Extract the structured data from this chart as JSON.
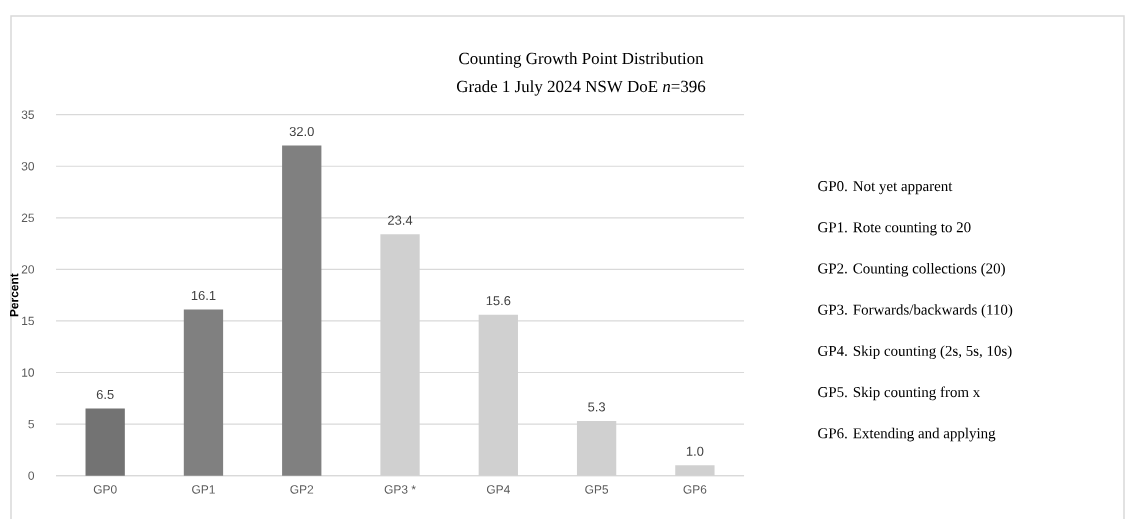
{
  "chart_data": {
    "type": "bar",
    "title": "Counting Growth Point Distribution",
    "subtitle": "Grade 1 July 2024 NSW DoE *n*=396",
    "ylabel": "Percent",
    "categories": [
      "GP0",
      "GP1",
      "GP2",
      "GP3 *",
      "GP4",
      "GP5",
      "GP6"
    ],
    "values": [
      6.5,
      16.1,
      32.0,
      23.4,
      15.6,
      5.3,
      1.0
    ],
    "value_labels": [
      "6.5",
      "16.1",
      "32.0",
      "23.4",
      "15.6",
      "5.3",
      "1.0"
    ],
    "colors": [
      "#737373",
      "#808080",
      "#808080",
      "#d0d0d0",
      "#d0d0d0",
      "#d0d0d0",
      "#d0d0d0"
    ],
    "ylim": [
      0,
      35
    ],
    "yticks": [
      0,
      5,
      10,
      15,
      20,
      25,
      30,
      35
    ],
    "grid": "y",
    "annotations": [
      "GP0. Not yet apparent",
      "GP1. Rote counting to 20",
      "GP2. Counting collections (20)",
      "GP3. Forwards/backwards (110)",
      "GP4. Skip counting (2s, 5s, 10s)",
      "GP5. Skip counting from x",
      "GP6. Extending and applying"
    ]
  }
}
